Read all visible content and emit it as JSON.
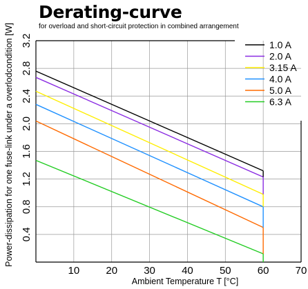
{
  "chart_data": {
    "type": "line",
    "title": "Derating-curve",
    "subtitle": "for overload and short-circuit protection in combined arrangement",
    "xlabel": "Ambient Temperature T [°C]",
    "ylabel": "Power-dissipation for one fuse-link under a overlodcondition [W]",
    "xlim": [
      0,
      70
    ],
    "ylim": [
      0,
      3.2
    ],
    "xticks": [
      "10",
      "20",
      "30",
      "40",
      "50",
      "60",
      "70"
    ],
    "yticks": [
      "0.4",
      "0.8",
      "1.2",
      "1.6",
      "2.0",
      "2.4",
      "2.8",
      "3.2"
    ],
    "grid": true,
    "legend_position": "top-right",
    "series": [
      {
        "name": "1.0 A",
        "color": "#000000",
        "x": [
          0,
          60
        ],
        "y": [
          2.76,
          1.32
        ]
      },
      {
        "name": "2.0 A",
        "color": "#8a2be2",
        "x": [
          0,
          60
        ],
        "y": [
          2.67,
          1.23
        ]
      },
      {
        "name": "3.15 A",
        "color": "#ffee00",
        "x": [
          0,
          60
        ],
        "y": [
          2.47,
          0.98
        ]
      },
      {
        "name": "4.0 A",
        "color": "#1e90ff",
        "x": [
          0,
          60
        ],
        "y": [
          2.28,
          0.8
        ]
      },
      {
        "name": "5.0 A",
        "color": "#ff6a00",
        "x": [
          0,
          60
        ],
        "y": [
          2.04,
          0.5
        ]
      },
      {
        "name": "6.3 A",
        "color": "#22cc22",
        "x": [
          0,
          60
        ],
        "y": [
          1.47,
          0.12
        ]
      }
    ]
  }
}
